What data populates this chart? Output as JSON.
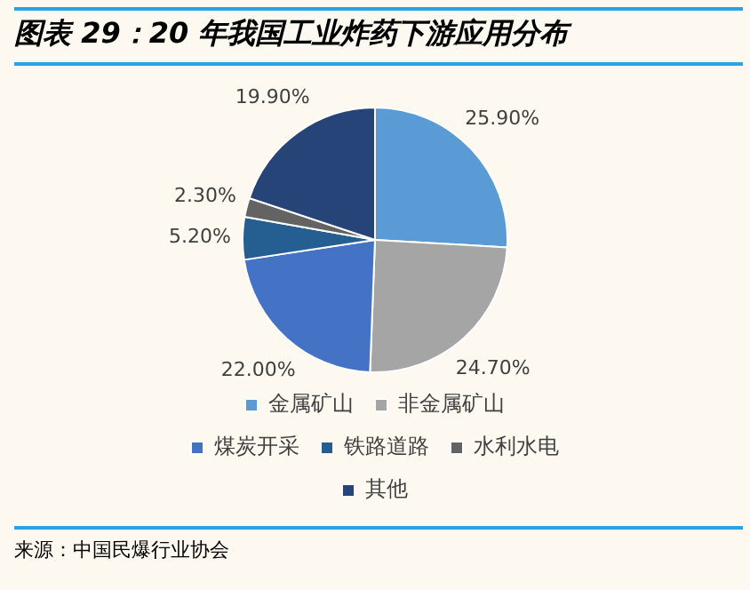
{
  "chart_data": {
    "type": "pie",
    "title": "图表 29：20 年我国工业炸药下游应用分布",
    "categories": [
      "金属矿山",
      "非金属矿山",
      "煤炭开采",
      "铁路道路",
      "水利水电",
      "其他"
    ],
    "values": [
      25.9,
      24.7,
      22.0,
      5.2,
      2.3,
      19.9
    ],
    "colors": [
      "#5b9bd5",
      "#a5a5a5",
      "#4472c4",
      "#255e91",
      "#636363",
      "#264478"
    ],
    "value_labels": [
      "25.90%",
      "24.70%",
      "22.00%",
      "5.20%",
      "2.30%",
      "19.90%"
    ],
    "legend": "bottom",
    "annotations": [
      "来源：中国民爆行业协会"
    ]
  }
}
